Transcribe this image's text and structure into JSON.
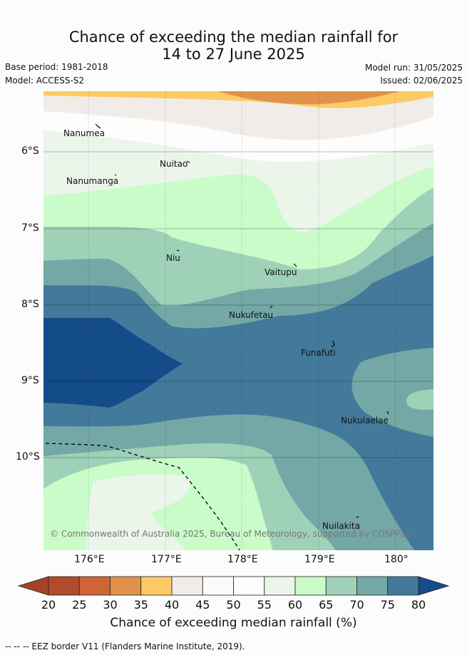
{
  "title": {
    "line1": "Chance of exceeding the median rainfall for",
    "line2": "14 to 27 June 2025"
  },
  "meta": {
    "base_period": "Base period: 1981-2018",
    "model": "Model: ACCESS-S2",
    "model_run": "Model run: 31/05/2025",
    "issued": "Issued: 02/06/2025"
  },
  "map": {
    "lat_ticks": [
      "6°S",
      "7°S",
      "8°S",
      "9°S",
      "10°S"
    ],
    "lon_ticks": [
      "176°E",
      "177°E",
      "178°E",
      "179°E",
      "180°"
    ],
    "places": [
      "Nanumea",
      "Nuitao",
      "Nanumanga",
      "Niu",
      "Vaitupu",
      "Nukufetau",
      "Funafuti",
      "Nukulaelae",
      "Nuilakita"
    ],
    "copyright": "© Commonwealth of Australia 2025, Bureau of Meteorology, supported by COSPPac",
    "colors": {
      "c20_25": "#b24b2c",
      "c25_30": "#cf6536",
      "c30_35": "#e1924a",
      "c35_40": "#fdca66",
      "c40_45": "#f1ece7",
      "c45_50": "#fbfbfb",
      "c50_55": "#fdfdfd",
      "c55_60": "#ebf5ea",
      "c60_65": "#c9fcc9",
      "c65_70": "#9fd1b8",
      "c70_75": "#73a8a6",
      "c75_80": "#437a9b",
      "c80": "#134c88"
    }
  },
  "colorbar": {
    "labels": [
      "20",
      "25",
      "30",
      "35",
      "40",
      "45",
      "50",
      "55",
      "60",
      "65",
      "70",
      "75",
      "80"
    ],
    "title": "Chance of exceeding median rainfall (%)",
    "colors": [
      "#b24b2c",
      "#cf6536",
      "#e1924a",
      "#fdca66",
      "#f1ece7",
      "#fbfbfb",
      "#fdfdfd",
      "#ebf5ea",
      "#c9fcc9",
      "#9fd1b8",
      "#73a8a6",
      "#437a9b"
    ],
    "under_color": "#a5432a",
    "over_color": "#134c88"
  },
  "eez_note": "--  --  -- EEZ border V11 (Flanders Marine Institute, 2019)."
}
